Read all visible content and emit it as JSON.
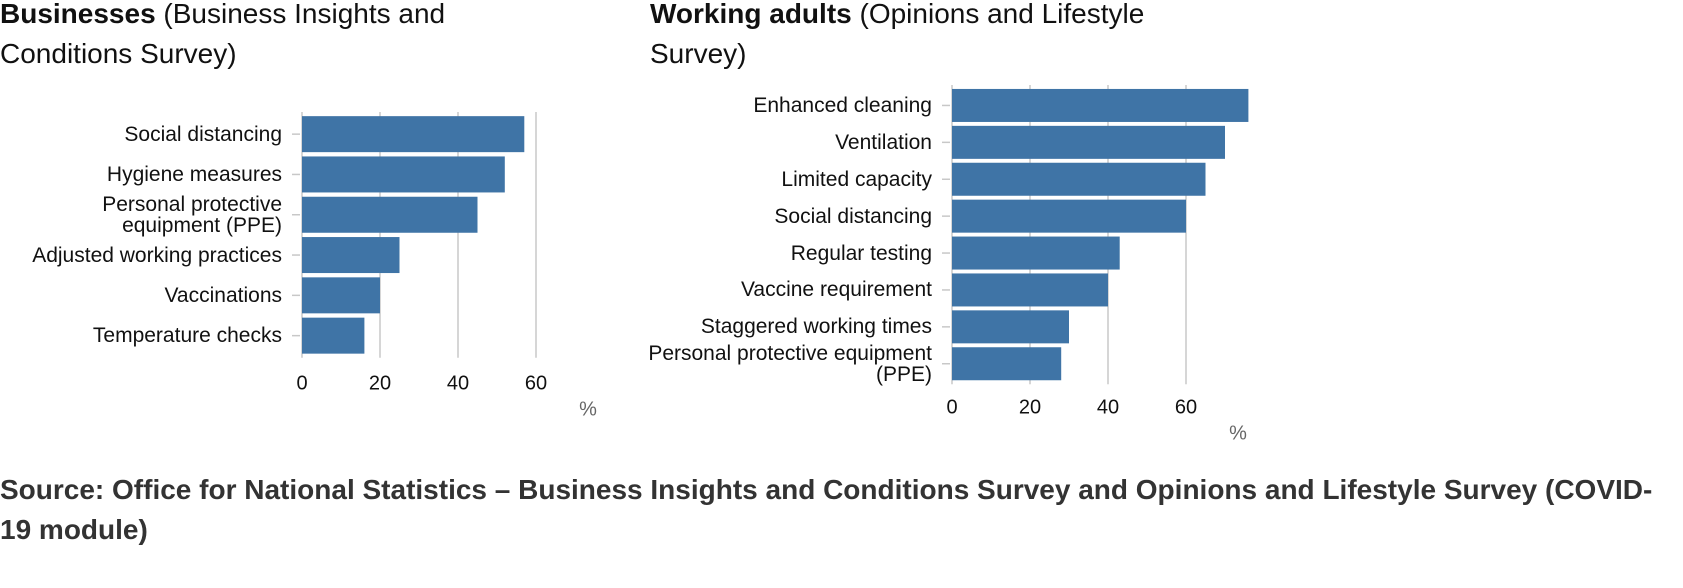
{
  "chart_data": [
    {
      "type": "bar",
      "orientation": "horizontal",
      "title": "Businesses",
      "subtitle": "(Business Insights and Conditions Survey)",
      "categories": [
        "Social distancing",
        "Hygiene measures",
        "Personal protective equipment (PPE)",
        "Adjusted working practices",
        "Vaccinations",
        "Temperature checks"
      ],
      "values": [
        57,
        52,
        45,
        25,
        20,
        16
      ],
      "color": "#3f74a6",
      "xlim": [
        0,
        60
      ],
      "xticks": [
        0,
        20,
        40,
        60
      ],
      "xlabel": "%",
      "grid": true
    },
    {
      "type": "bar",
      "orientation": "horizontal",
      "title": "Working adults",
      "subtitle": "(Opinions and Lifestyle Survey)",
      "categories": [
        "Enhanced cleaning",
        "Ventilation",
        "Limited capacity",
        "Social distancing",
        "Regular testing",
        "Vaccine requirement",
        "Staggered working times",
        "Personal protective equipment (PPE)"
      ],
      "values": [
        76,
        70,
        65,
        60,
        43,
        40,
        30,
        28
      ],
      "color": "#3f74a6",
      "xlim": [
        0,
        80
      ],
      "xticks": [
        0,
        20,
        40,
        60
      ],
      "xlabel": "%",
      "grid": true
    }
  ],
  "source": "Source: Office for National Statistics – Business Insights and Conditions Survey and Opinions and Lifestyle Survey (COVID-19 module)"
}
